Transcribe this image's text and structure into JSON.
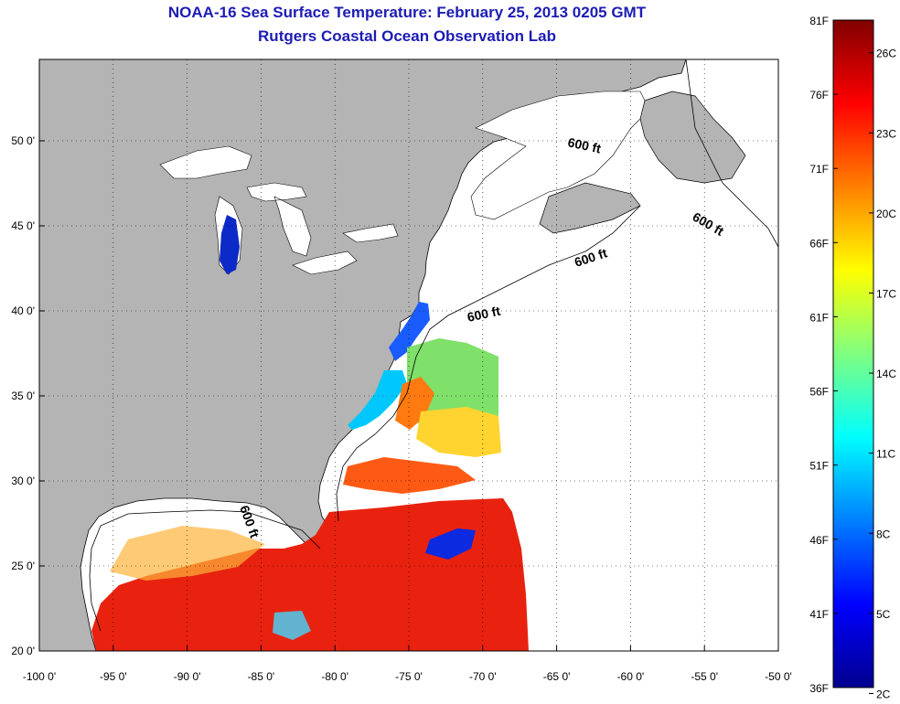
{
  "header": {
    "title": "NOAA-16 Sea Surface Temperature:  February 25, 2013 0205 GMT",
    "subtitle": "Rutgers Coastal Ocean Observation Lab"
  },
  "map": {
    "lon_ticks": [
      "-100 0'",
      "-95 0'",
      "-90 0'",
      "-85 0'",
      "-80 0'",
      "-75 0'",
      "-70 0'",
      "-65 0'",
      "-60 0'",
      "-55 0'",
      "-50 0'"
    ],
    "lat_ticks": [
      "50 0'",
      "45 0'",
      "40 0'",
      "35 0'",
      "30 0'",
      "25 0'",
      "20 0'"
    ],
    "contour_labels": [
      "600 ft",
      "600 ft",
      "600 ft",
      "600 ft",
      "600 ft"
    ],
    "land_color": "#b4b4b4",
    "no_data_color": "#ffffff"
  },
  "colorbar": {
    "f_labels": [
      "81F",
      "76F",
      "71F",
      "66F",
      "61F",
      "56F",
      "51F",
      "46F",
      "41F",
      "36F"
    ],
    "c_labels": [
      "26C",
      "23C",
      "20C",
      "17C",
      "14C",
      "11C",
      "8C",
      "5C",
      "2C"
    ],
    "colormap": "jet"
  }
}
